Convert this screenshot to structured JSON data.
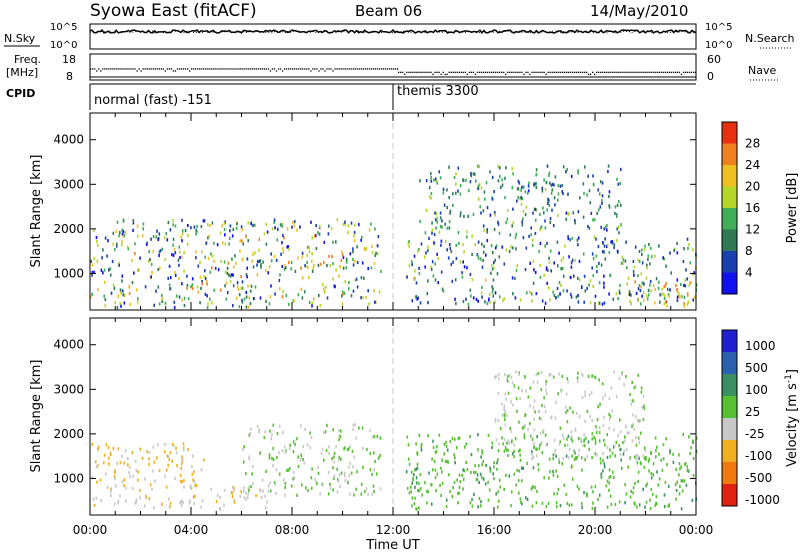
{
  "header": {
    "station": "Syowa East (fitACF)",
    "beam": "Beam 06",
    "date": "14/May/2010"
  },
  "noise_panel": {
    "left_label": "N.Sky",
    "right_label": "N.Search",
    "left_ticks": [
      "10^5",
      "10^0"
    ],
    "right_ticks": [
      "10^5",
      "10^0"
    ]
  },
  "freq_panel": {
    "left_label_1": "Freq.",
    "left_label_2": "[MHz]",
    "right_label": "Nave",
    "left_ticks": [
      "18",
      "8"
    ],
    "right_ticks": [
      "60",
      "0"
    ]
  },
  "cpid": {
    "label": "CPID",
    "segments": [
      {
        "start_hour": 0,
        "text": "normal (fast) -151"
      },
      {
        "start_hour": 12,
        "text": "themis 3300"
      }
    ]
  },
  "time_axis": {
    "label": "Time UT",
    "range_hours": [
      0,
      24
    ],
    "ticks": [
      "00:00",
      "04:00",
      "08:00",
      "12:00",
      "16:00",
      "20:00",
      "00:00"
    ],
    "marker_hour": 12
  },
  "range_axis": {
    "label": "Slant Range [km]",
    "range_km": [
      180,
      4600
    ],
    "ticks": [
      "1000",
      "2000",
      "3000",
      "4000"
    ]
  },
  "colorbars": {
    "power": {
      "title": "Power [dB]",
      "labels": [
        "4",
        "8",
        "12",
        "16",
        "20",
        "24",
        "28"
      ],
      "colors": [
        "#1010f0",
        "#1a3fb0",
        "#2f7a55",
        "#3fae57",
        "#b6d62a",
        "#f0c020",
        "#f08020",
        "#e83010"
      ]
    },
    "velocity": {
      "title": "Velocity [m s^-1]",
      "labels": [
        "1000",
        "500",
        "100",
        "25",
        "-25",
        "-100",
        "-500",
        "-1000"
      ],
      "colors": [
        "#2020d0",
        "#2a60b0",
        "#3a9060",
        "#55c030",
        "#c8c8c8",
        "#f0b020",
        "#f07810",
        "#e02010"
      ]
    }
  },
  "chart_data": [
    {
      "type": "line",
      "title": "N.Sky / N.Search",
      "x_range_hours": [
        0,
        24
      ],
      "series": [
        {
          "name": "N.Sky",
          "style": "solid",
          "level_fraction_of_panel": 0.8
        },
        {
          "name": "N.Search",
          "style": "dotted",
          "level_fraction_of_panel": 0.78
        }
      ]
    },
    {
      "type": "scatter",
      "title": "Freq. / Nave",
      "x_range_hours": [
        0,
        24
      ],
      "series": [
        {
          "name": "Freq. [MHz]",
          "segments": [
            {
              "hours": [
                0,
                12.2
              ],
              "value_mhz": 12.5
            },
            {
              "hours": [
                12.2,
                24
              ],
              "value_mhz": 11.2
            }
          ]
        },
        {
          "name": "Nave",
          "value": 3
        }
      ]
    },
    {
      "type": "heatmap",
      "title": "Power [dB]",
      "x_range_hours": [
        0,
        24
      ],
      "y_range_km": [
        180,
        4600
      ],
      "value_range_db": [
        3,
        30
      ],
      "echo_regions": [
        {
          "hours": [
            0,
            11.5
          ],
          "km": [
            220,
            2200
          ],
          "db": [
            4,
            24
          ]
        },
        {
          "hours": [
            4,
            6
          ],
          "km": [
            600,
            800
          ],
          "db": [
            20,
            28
          ]
        },
        {
          "hours": [
            7.5,
            10
          ],
          "km": [
            1100,
            1400
          ],
          "db": [
            16,
            26
          ]
        },
        {
          "hours": [
            12.5,
            24
          ],
          "km": [
            300,
            1800
          ],
          "db": [
            4,
            20
          ]
        },
        {
          "hours": [
            13,
            21
          ],
          "km": [
            1800,
            3400
          ],
          "db": [
            6,
            18
          ]
        },
        {
          "hours": [
            21.5,
            24
          ],
          "km": [
            250,
            900
          ],
          "db": [
            16,
            28
          ]
        }
      ]
    },
    {
      "type": "heatmap",
      "title": "Velocity [m s^-1]",
      "x_range_hours": [
        0,
        24
      ],
      "y_range_km": [
        180,
        4600
      ],
      "value_range_ms": [
        -1000,
        1000
      ],
      "echo_regions": [
        {
          "hours": [
            0,
            4.5
          ],
          "km": [
            800,
            1800
          ],
          "ms": [
            -500,
            -100
          ]
        },
        {
          "hours": [
            0,
            7
          ],
          "km": [
            300,
            800
          ],
          "ms": [
            -300,
            -25
          ]
        },
        {
          "hours": [
            6,
            11.5
          ],
          "km": [
            600,
            2200
          ],
          "ms": [
            -25,
            25
          ]
        },
        {
          "hours": [
            12.5,
            24
          ],
          "km": [
            300,
            2000
          ],
          "ms": [
            25,
            300
          ]
        },
        {
          "hours": [
            16,
            22
          ],
          "km": [
            1400,
            3400
          ],
          "ms": [
            -200,
            100
          ]
        }
      ]
    }
  ]
}
